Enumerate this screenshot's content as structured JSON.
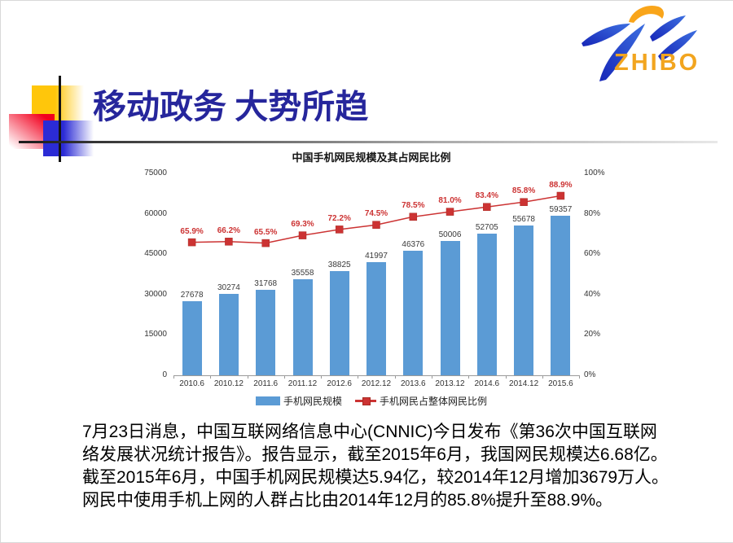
{
  "logo": {
    "text": "ZHIBO",
    "colors": {
      "orange": "#F2A51F",
      "blue_light": "#3D6FE0",
      "blue_dark": "#1626B8"
    }
  },
  "title": "移动政务 大势所趋",
  "chart_data": {
    "type": "bar",
    "title": "中国手机网民规模及其占网民比例",
    "categories": [
      "2010.6",
      "2010.12",
      "2011.6",
      "2011.12",
      "2012.6",
      "2012.12",
      "2013.6",
      "2013.12",
      "2014.6",
      "2014.12",
      "2015.6"
    ],
    "series": [
      {
        "name": "手机网民规模",
        "type": "bar",
        "axis": "left",
        "color": "#5B9BD5",
        "values": [
          27678,
          30274,
          31768,
          35558,
          38825,
          41997,
          46376,
          50006,
          52705,
          55678,
          59357
        ]
      },
      {
        "name": "手机网民占整体网民比例",
        "type": "line",
        "axis": "right",
        "color": "#CC3333",
        "values": [
          65.9,
          66.2,
          65.5,
          69.3,
          72.2,
          74.5,
          78.5,
          81.0,
          83.4,
          85.8,
          88.9
        ],
        "labels": [
          "65.9%",
          "66.2%",
          "65.5%",
          "69.3%",
          "72.2%",
          "74.5%",
          "78.5%",
          "81.0%",
          "83.4%",
          "85.8%",
          "88.9%"
        ]
      }
    ],
    "left_axis": {
      "min": 0,
      "max": 75000,
      "ticks": [
        "75000",
        "60000",
        "45000",
        "30000",
        "15000",
        "0"
      ]
    },
    "right_axis": {
      "min": 0,
      "max": 100,
      "ticks": [
        "100%",
        "80%",
        "60%",
        "40%",
        "20%",
        "0%"
      ]
    },
    "legend_position": "bottom",
    "grid": false
  },
  "body": {
    "lines": [
      "7月23日消息，中国互联网络信息中心(CNNIC)今日发布《第36次中国互联网",
      "络发展状况统计报告》。报告显示，截至2015年6月，我国网民规模达6.68亿。",
      "截至2015年6月，中国手机网民规模达5.94亿，较2014年12月增加3679万人。",
      "网民中使用手机上网的人群占比由2014年12月的85.8%提升至88.9%。"
    ]
  }
}
